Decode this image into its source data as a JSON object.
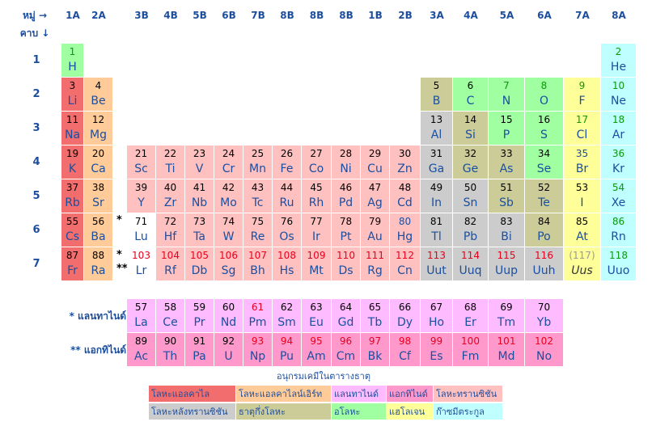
{
  "header": {
    "group_label": "หมู่ →",
    "period_label": "คาบ ↓",
    "groups": [
      "1A",
      "2A",
      "3B",
      "4B",
      "5B",
      "6B",
      "7B",
      "8B",
      "8B",
      "8B",
      "1B",
      "2B",
      "3A",
      "4A",
      "5A",
      "6A",
      "7A",
      "8A"
    ]
  },
  "periods": [
    "1",
    "2",
    "3",
    "4",
    "5",
    "6",
    "7"
  ],
  "colors": {
    "alkali": "#f26d6d",
    "alkaline": "#ffcc99",
    "lanthanide": "#ffbbff",
    "actinide": "#ff99cc",
    "transition": "#ffc0c0",
    "post_transition": "#cccccc",
    "metalloid": "#cccc99",
    "nonmetal": "#a0ffa0",
    "halogen": "#ffff99",
    "noble": "#c0ffff",
    "unknown": "#e8e8e8",
    "text_blue": "#1a4fa0",
    "text_black": "#000000",
    "text_red": "#e8001c",
    "text_green": "#0a9a0a",
    "text_gray": "#999999"
  },
  "elements": [
    {
      "n": "1",
      "s": "H",
      "r": 1,
      "c": 1,
      "cat": "nonmetal",
      "nc": "text_green"
    },
    {
      "n": "2",
      "s": "He",
      "r": 1,
      "c": 18,
      "cat": "noble",
      "nc": "text_green"
    },
    {
      "n": "3",
      "s": "Li",
      "r": 2,
      "c": 1,
      "cat": "alkali",
      "nc": "text_black"
    },
    {
      "n": "4",
      "s": "Be",
      "r": 2,
      "c": 2,
      "cat": "alkaline",
      "nc": "text_black"
    },
    {
      "n": "5",
      "s": "B",
      "r": 2,
      "c": 13,
      "cat": "metalloid",
      "nc": "text_black"
    },
    {
      "n": "6",
      "s": "C",
      "r": 2,
      "c": 14,
      "cat": "nonmetal",
      "nc": "text_black"
    },
    {
      "n": "7",
      "s": "N",
      "r": 2,
      "c": 15,
      "cat": "nonmetal",
      "nc": "text_green"
    },
    {
      "n": "8",
      "s": "O",
      "r": 2,
      "c": 16,
      "cat": "nonmetal",
      "nc": "text_green"
    },
    {
      "n": "9",
      "s": "F",
      "r": 2,
      "c": 17,
      "cat": "halogen",
      "nc": "text_green"
    },
    {
      "n": "10",
      "s": "Ne",
      "r": 2,
      "c": 18,
      "cat": "noble",
      "nc": "text_green"
    },
    {
      "n": "11",
      "s": "Na",
      "r": 3,
      "c": 1,
      "cat": "alkali",
      "nc": "text_black"
    },
    {
      "n": "12",
      "s": "Mg",
      "r": 3,
      "c": 2,
      "cat": "alkaline",
      "nc": "text_black"
    },
    {
      "n": "13",
      "s": "Al",
      "r": 3,
      "c": 13,
      "cat": "post_transition",
      "nc": "text_black"
    },
    {
      "n": "14",
      "s": "Si",
      "r": 3,
      "c": 14,
      "cat": "metalloid",
      "nc": "text_black"
    },
    {
      "n": "15",
      "s": "P",
      "r": 3,
      "c": 15,
      "cat": "nonmetal",
      "nc": "text_black"
    },
    {
      "n": "16",
      "s": "S",
      "r": 3,
      "c": 16,
      "cat": "nonmetal",
      "nc": "text_black"
    },
    {
      "n": "17",
      "s": "Cl",
      "r": 3,
      "c": 17,
      "cat": "halogen",
      "nc": "text_green"
    },
    {
      "n": "18",
      "s": "Ar",
      "r": 3,
      "c": 18,
      "cat": "noble",
      "nc": "text_green"
    },
    {
      "n": "19",
      "s": "K",
      "r": 4,
      "c": 1,
      "cat": "alkali",
      "nc": "text_black"
    },
    {
      "n": "20",
      "s": "Ca",
      "r": 4,
      "c": 2,
      "cat": "alkaline",
      "nc": "text_black"
    },
    {
      "n": "21",
      "s": "Sc",
      "r": 4,
      "c": 3,
      "cat": "transition",
      "nc": "text_black"
    },
    {
      "n": "22",
      "s": "Ti",
      "r": 4,
      "c": 4,
      "cat": "transition",
      "nc": "text_black"
    },
    {
      "n": "23",
      "s": "V",
      "r": 4,
      "c": 5,
      "cat": "transition",
      "nc": "text_black"
    },
    {
      "n": "24",
      "s": "Cr",
      "r": 4,
      "c": 6,
      "cat": "transition",
      "nc": "text_black"
    },
    {
      "n": "25",
      "s": "Mn",
      "r": 4,
      "c": 7,
      "cat": "transition",
      "nc": "text_black"
    },
    {
      "n": "26",
      "s": "Fe",
      "r": 4,
      "c": 8,
      "cat": "transition",
      "nc": "text_black"
    },
    {
      "n": "27",
      "s": "Co",
      "r": 4,
      "c": 9,
      "cat": "transition",
      "nc": "text_black"
    },
    {
      "n": "28",
      "s": "Ni",
      "r": 4,
      "c": 10,
      "cat": "transition",
      "nc": "text_black"
    },
    {
      "n": "29",
      "s": "Cu",
      "r": 4,
      "c": 11,
      "cat": "transition",
      "nc": "text_black"
    },
    {
      "n": "30",
      "s": "Zn",
      "r": 4,
      "c": 12,
      "cat": "transition",
      "nc": "text_black"
    },
    {
      "n": "31",
      "s": "Ga",
      "r": 4,
      "c": 13,
      "cat": "post_transition",
      "nc": "text_black"
    },
    {
      "n": "32",
      "s": "Ge",
      "r": 4,
      "c": 14,
      "cat": "metalloid",
      "nc": "text_black"
    },
    {
      "n": "33",
      "s": "As",
      "r": 4,
      "c": 15,
      "cat": "metalloid",
      "nc": "text_black"
    },
    {
      "n": "34",
      "s": "Se",
      "r": 4,
      "c": 16,
      "cat": "nonmetal",
      "nc": "text_black"
    },
    {
      "n": "35",
      "s": "Br",
      "r": 4,
      "c": 17,
      "cat": "halogen",
      "nc": "text_blue"
    },
    {
      "n": "36",
      "s": "Kr",
      "r": 4,
      "c": 18,
      "cat": "noble",
      "nc": "text_green"
    },
    {
      "n": "37",
      "s": "Rb",
      "r": 5,
      "c": 1,
      "cat": "alkali",
      "nc": "text_black"
    },
    {
      "n": "38",
      "s": "Sr",
      "r": 5,
      "c": 2,
      "cat": "alkaline",
      "nc": "text_black"
    },
    {
      "n": "39",
      "s": "Y",
      "r": 5,
      "c": 3,
      "cat": "transition",
      "nc": "text_black"
    },
    {
      "n": "40",
      "s": "Zr",
      "r": 5,
      "c": 4,
      "cat": "transition",
      "nc": "text_black"
    },
    {
      "n": "41",
      "s": "Nb",
      "r": 5,
      "c": 5,
      "cat": "transition",
      "nc": "text_black"
    },
    {
      "n": "42",
      "s": "Mo",
      "r": 5,
      "c": 6,
      "cat": "transition",
      "nc": "text_black"
    },
    {
      "n": "43",
      "s": "Tc",
      "r": 5,
      "c": 7,
      "cat": "transition",
      "nc": "text_black"
    },
    {
      "n": "44",
      "s": "Ru",
      "r": 5,
      "c": 8,
      "cat": "transition",
      "nc": "text_black"
    },
    {
      "n": "45",
      "s": "Rh",
      "r": 5,
      "c": 9,
      "cat": "transition",
      "nc": "text_black"
    },
    {
      "n": "46",
      "s": "Pd",
      "r": 5,
      "c": 10,
      "cat": "transition",
      "nc": "text_black"
    },
    {
      "n": "47",
      "s": "Ag",
      "r": 5,
      "c": 11,
      "cat": "transition",
      "nc": "text_black"
    },
    {
      "n": "48",
      "s": "Cd",
      "r": 5,
      "c": 12,
      "cat": "transition",
      "nc": "text_black"
    },
    {
      "n": "49",
      "s": "In",
      "r": 5,
      "c": 13,
      "cat": "post_transition",
      "nc": "text_black"
    },
    {
      "n": "50",
      "s": "Sn",
      "r": 5,
      "c": 14,
      "cat": "post_transition",
      "nc": "text_black"
    },
    {
      "n": "51",
      "s": "Sb",
      "r": 5,
      "c": 15,
      "cat": "metalloid",
      "nc": "text_black"
    },
    {
      "n": "52",
      "s": "Te",
      "r": 5,
      "c": 16,
      "cat": "metalloid",
      "nc": "text_black"
    },
    {
      "n": "53",
      "s": "I",
      "r": 5,
      "c": 17,
      "cat": "halogen",
      "nc": "text_black"
    },
    {
      "n": "54",
      "s": "Xe",
      "r": 5,
      "c": 18,
      "cat": "noble",
      "nc": "text_green"
    },
    {
      "n": "55",
      "s": "Cs",
      "r": 6,
      "c": 1,
      "cat": "alkali",
      "nc": "text_black"
    },
    {
      "n": "56",
      "s": "Ba",
      "r": 6,
      "c": 2,
      "cat": "alkaline",
      "nc": "text_black"
    },
    {
      "n": "71",
      "s": "Lu",
      "r": 6,
      "c": 3,
      "cat": "none",
      "nc": "text_black"
    },
    {
      "n": "72",
      "s": "Hf",
      "r": 6,
      "c": 4,
      "cat": "transition",
      "nc": "text_black"
    },
    {
      "n": "73",
      "s": "Ta",
      "r": 6,
      "c": 5,
      "cat": "transition",
      "nc": "text_black"
    },
    {
      "n": "74",
      "s": "W",
      "r": 6,
      "c": 6,
      "cat": "transition",
      "nc": "text_black"
    },
    {
      "n": "75",
      "s": "Re",
      "r": 6,
      "c": 7,
      "cat": "transition",
      "nc": "text_black"
    },
    {
      "n": "76",
      "s": "Os",
      "r": 6,
      "c": 8,
      "cat": "transition",
      "nc": "text_black"
    },
    {
      "n": "77",
      "s": "Ir",
      "r": 6,
      "c": 9,
      "cat": "transition",
      "nc": "text_black"
    },
    {
      "n": "78",
      "s": "Pt",
      "r": 6,
      "c": 10,
      "cat": "transition",
      "nc": "text_black"
    },
    {
      "n": "79",
      "s": "Au",
      "r": 6,
      "c": 11,
      "cat": "transition",
      "nc": "text_black"
    },
    {
      "n": "80",
      "s": "Hg",
      "r": 6,
      "c": 12,
      "cat": "transition",
      "nc": "text_blue"
    },
    {
      "n": "81",
      "s": "Tl",
      "r": 6,
      "c": 13,
      "cat": "post_transition",
      "nc": "text_black"
    },
    {
      "n": "82",
      "s": "Pb",
      "r": 6,
      "c": 14,
      "cat": "post_transition",
      "nc": "text_black"
    },
    {
      "n": "83",
      "s": "Bi",
      "r": 6,
      "c": 15,
      "cat": "post_transition",
      "nc": "text_black"
    },
    {
      "n": "84",
      "s": "Po",
      "r": 6,
      "c": 16,
      "cat": "metalloid",
      "nc": "text_black"
    },
    {
      "n": "85",
      "s": "At",
      "r": 6,
      "c": 17,
      "cat": "halogen",
      "nc": "text_black"
    },
    {
      "n": "86",
      "s": "Rn",
      "r": 6,
      "c": 18,
      "cat": "noble",
      "nc": "text_green"
    },
    {
      "n": "87",
      "s": "Fr",
      "r": 7,
      "c": 1,
      "cat": "alkali",
      "nc": "text_black"
    },
    {
      "n": "88",
      "s": "Ra",
      "r": 7,
      "c": 2,
      "cat": "alkaline",
      "nc": "text_black"
    },
    {
      "n": "103",
      "s": "Lr",
      "r": 7,
      "c": 3,
      "cat": "none",
      "nc": "text_red"
    },
    {
      "n": "104",
      "s": "Rf",
      "r": 7,
      "c": 4,
      "cat": "transition",
      "nc": "text_red"
    },
    {
      "n": "105",
      "s": "Db",
      "r": 7,
      "c": 5,
      "cat": "transition",
      "nc": "text_red"
    },
    {
      "n": "106",
      "s": "Sg",
      "r": 7,
      "c": 6,
      "cat": "transition",
      "nc": "text_red"
    },
    {
      "n": "107",
      "s": "Bh",
      "r": 7,
      "c": 7,
      "cat": "transition",
      "nc": "text_red"
    },
    {
      "n": "108",
      "s": "Hs",
      "r": 7,
      "c": 8,
      "cat": "transition",
      "nc": "text_red"
    },
    {
      "n": "109",
      "s": "Mt",
      "r": 7,
      "c": 9,
      "cat": "transition",
      "nc": "text_red"
    },
    {
      "n": "110",
      "s": "Ds",
      "r": 7,
      "c": 10,
      "cat": "transition",
      "nc": "text_red"
    },
    {
      "n": "111",
      "s": "Rg",
      "r": 7,
      "c": 11,
      "cat": "transition",
      "nc": "text_red"
    },
    {
      "n": "112",
      "s": "Cn",
      "r": 7,
      "c": 12,
      "cat": "transition",
      "nc": "text_red"
    },
    {
      "n": "113",
      "s": "Uut",
      "r": 7,
      "c": 13,
      "cat": "post_transition",
      "nc": "text_red"
    },
    {
      "n": "114",
      "s": "Uuq",
      "r": 7,
      "c": 14,
      "cat": "post_transition",
      "nc": "text_red"
    },
    {
      "n": "115",
      "s": "Uup",
      "r": 7,
      "c": 15,
      "cat": "post_transition",
      "nc": "text_red"
    },
    {
      "n": "116",
      "s": "Uuh",
      "r": 7,
      "c": 16,
      "cat": "post_transition",
      "nc": "text_red"
    },
    {
      "n": "(117)",
      "s": "Uus",
      "r": 7,
      "c": 17,
      "cat": "halogen",
      "nc": "text_gray",
      "italic": true
    },
    {
      "n": "118",
      "s": "Uuo",
      "r": 7,
      "c": 18,
      "cat": "noble",
      "nc": "text_green"
    }
  ],
  "lanthanides": [
    {
      "n": "57",
      "s": "La",
      "nc": "text_black"
    },
    {
      "n": "58",
      "s": "Ce",
      "nc": "text_black"
    },
    {
      "n": "59",
      "s": "Pr",
      "nc": "text_black"
    },
    {
      "n": "60",
      "s": "Nd",
      "nc": "text_black"
    },
    {
      "n": "61",
      "s": "Pm",
      "nc": "text_red"
    },
    {
      "n": "62",
      "s": "Sm",
      "nc": "text_black"
    },
    {
      "n": "63",
      "s": "Eu",
      "nc": "text_black"
    },
    {
      "n": "64",
      "s": "Gd",
      "nc": "text_black"
    },
    {
      "n": "65",
      "s": "Tb",
      "nc": "text_black"
    },
    {
      "n": "66",
      "s": "Dy",
      "nc": "text_black"
    },
    {
      "n": "67",
      "s": "Ho",
      "nc": "text_black"
    },
    {
      "n": "68",
      "s": "Er",
      "nc": "text_black"
    },
    {
      "n": "69",
      "s": "Tm",
      "nc": "text_black"
    },
    {
      "n": "70",
      "s": "Yb",
      "nc": "text_black"
    }
  ],
  "actinides": [
    {
      "n": "89",
      "s": "Ac",
      "nc": "text_black"
    },
    {
      "n": "90",
      "s": "Th",
      "nc": "text_black"
    },
    {
      "n": "91",
      "s": "Pa",
      "nc": "text_black"
    },
    {
      "n": "92",
      "s": "U",
      "nc": "text_black"
    },
    {
      "n": "93",
      "s": "Np",
      "nc": "text_red"
    },
    {
      "n": "94",
      "s": "Pu",
      "nc": "text_red"
    },
    {
      "n": "95",
      "s": "Am",
      "nc": "text_red"
    },
    {
      "n": "96",
      "s": "Cm",
      "nc": "text_red"
    },
    {
      "n": "97",
      "s": "Bk",
      "nc": "text_red"
    },
    {
      "n": "98",
      "s": "Cf",
      "nc": "text_red"
    },
    {
      "n": "99",
      "s": "Es",
      "nc": "text_red"
    },
    {
      "n": "100",
      "s": "Fm",
      "nc": "text_red"
    },
    {
      "n": "101",
      "s": "Md",
      "nc": "text_red"
    },
    {
      "n": "102",
      "s": "No",
      "nc": "text_red"
    }
  ],
  "series_labels": {
    "lanthanide": "* แลนทาไนด์",
    "actinide": "** แอกทิไนด์",
    "star_one": "*",
    "star_two": "**"
  },
  "legend": {
    "title": "อนุกรมเคมีในตารางธาตุ",
    "items": [
      {
        "label": "โลหะแอลคาไล",
        "cat": "alkali"
      },
      {
        "label": "โลหะแอลคาไลน์เอิร์ท",
        "cat": "alkaline"
      },
      {
        "label": "แลนทาไนด์",
        "cat": "lanthanide"
      },
      {
        "label": "แอกทิไนด์",
        "cat": "actinide"
      },
      {
        "label": "โลหะทรานซิชัน",
        "cat": "transition"
      },
      {
        "label": "โลหะหลังทรานซิชัน",
        "cat": "post_transition"
      },
      {
        "label": "ธาตุกึ่งโลหะ",
        "cat": "metalloid"
      },
      {
        "label": "อโลหะ",
        "cat": "nonmetal"
      },
      {
        "label": "แฮโลเจน",
        "cat": "halogen"
      },
      {
        "label": "ก๊าซมีตระกูล",
        "cat": "noble"
      }
    ]
  }
}
